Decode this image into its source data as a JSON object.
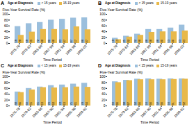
{
  "chart_data": [
    {
      "type": "bar",
      "title": "A",
      "categories": [
        "1975-78",
        "1979-82",
        "1983-86",
        "1987-90",
        "1991-94",
        "1995-98",
        "1999-02"
      ],
      "series": [
        {
          "name": "< 15 years",
          "color": "#9bbfdd",
          "values": [
            58,
            68,
            72,
            80,
            83,
            87,
            88
          ]
        },
        {
          "name": "15-19 years",
          "color": "#e8b94a",
          "values": [
            28,
            39,
            48,
            48,
            47,
            57,
            47
          ]
        }
      ],
      "xlabel": "Time Period",
      "ylabel": "Five-Year Survival Rate (%)",
      "ylim": [
        0,
        100
      ],
      "yticks": [
        0,
        20,
        40,
        60,
        80,
        100
      ],
      "legend": "top",
      "legend_title": "Age at Diagnosis",
      "data_labels": true,
      "grid": false,
      "stacked": false
    },
    {
      "type": "bar",
      "title": "B",
      "categories": [
        "1975-78",
        "1979-82",
        "1983-86",
        "1987-90",
        "1991-94",
        "1995-98",
        "1999-02"
      ],
      "series": [
        {
          "name": "< 15 years",
          "color": "#9bbfdd",
          "values": [
            18,
            25,
            32,
            48,
            48,
            53,
            63
          ]
        },
        {
          "name": "15-19 years",
          "color": "#e8b94a",
          "values": [
            13,
            22,
            28,
            38,
            40,
            40,
            43
          ]
        }
      ],
      "xlabel": "Time Period",
      "ylabel": "Five-Year Survival Rate (%)",
      "ylim": [
        0,
        100
      ],
      "yticks": [
        0,
        20,
        40,
        60,
        80,
        100
      ],
      "legend": "top",
      "legend_title": "Age at Diagnosis",
      "data_labels": true,
      "grid": false,
      "stacked": false
    },
    {
      "type": "bar",
      "title": "C",
      "categories": [
        "1975-78",
        "1979-82",
        "1983-86",
        "1987-90",
        "1991-94",
        "1995-98",
        "1999-02"
      ],
      "series": [
        {
          "name": "< 15 years",
          "color": "#9bbfdd",
          "values": [
            48,
            60,
            65,
            70,
            72,
            75,
            78
          ]
        },
        {
          "name": "15-19 years",
          "color": "#e8b94a",
          "values": [
            46,
            55,
            63,
            62,
            63,
            65,
            64
          ]
        }
      ],
      "xlabel": "Time Period",
      "ylabel": "Five-Year Survival Rate (%)",
      "ylim": [
        0,
        100
      ],
      "yticks": [
        0,
        20,
        40,
        60,
        80,
        100
      ],
      "legend": "top",
      "legend_title": "Age at Diagnosis",
      "data_labels": true,
      "grid": false,
      "stacked": false
    },
    {
      "type": "bar",
      "title": "D",
      "categories": [
        "1975-78",
        "1979-82",
        "1983-86",
        "1987-90",
        "1991-94",
        "1995-98",
        "1999-02"
      ],
      "series": [
        {
          "name": "< 15 years",
          "color": "#9bbfdd",
          "values": [
            83,
            88,
            92,
            93,
            92,
            93,
            93
          ]
        },
        {
          "name": "15-19 years",
          "color": "#e8b94a",
          "values": [
            80,
            87,
            90,
            90,
            90,
            91,
            92
          ]
        }
      ],
      "xlabel": "Time Period",
      "ylabel": "Five-Year Survival Rate (%)",
      "ylim": [
        0,
        100
      ],
      "yticks": [
        0,
        20,
        40,
        60,
        80,
        100
      ],
      "legend": "top",
      "legend_title": "Age at Diagnosis",
      "data_labels": true,
      "grid": false,
      "stacked": false
    }
  ]
}
